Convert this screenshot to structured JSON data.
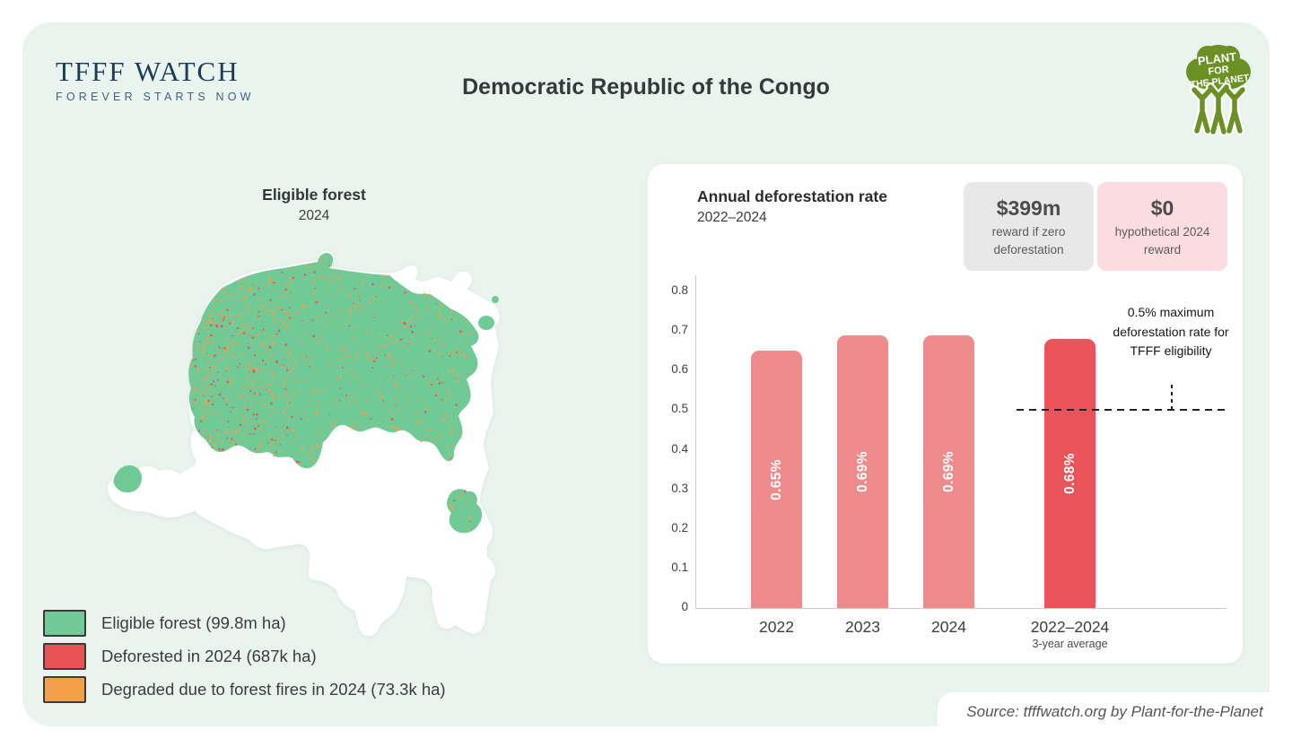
{
  "header": {
    "logo_title": "TFFF WATCH",
    "logo_tagline": "FOREVER STARTS NOW",
    "title": "Democratic Republic of the Congo",
    "brand_logo_lines": [
      "PLANT",
      "FOR",
      "THE PLANET"
    ]
  },
  "map_section": {
    "title": "Eligible forest",
    "subtitle": "2024",
    "legend": [
      {
        "label": "Eligible forest (99.8m ha)",
        "color": "#6fca96"
      },
      {
        "label": "Deforested in 2024 (687k ha)",
        "color": "#e85456"
      },
      {
        "label": "Degraded due to forest fires in 2024 (73.3k ha)",
        "color": "#f3a04a"
      }
    ]
  },
  "rewards": [
    {
      "value": "$399m",
      "label": "reward if zero deforestation",
      "bg": "#e9e8e8"
    },
    {
      "value": "$0",
      "label": "hypothetical 2024 reward",
      "bg": "#fbdce1"
    }
  ],
  "chart_data": {
    "type": "bar",
    "title": "Annual deforestation rate",
    "subtitle": "2022–2024",
    "categories": [
      "2022",
      "2023",
      "2024",
      "2022–2024"
    ],
    "category_sublabels": [
      "",
      "",
      "",
      "3-year average"
    ],
    "values": [
      0.65,
      0.69,
      0.69,
      0.68
    ],
    "value_labels": [
      "0.65%",
      "0.69%",
      "0.69%",
      "0.68%"
    ],
    "bar_colors": [
      "#f08b8b",
      "#f08b8b",
      "#f08b8b",
      "#e85459"
    ],
    "xlabel": "",
    "ylabel": "",
    "ylim": [
      0,
      0.8
    ],
    "yticks": [
      0,
      0.1,
      0.2,
      0.3,
      0.4,
      0.5,
      0.6,
      0.7,
      0.8
    ],
    "grid": false,
    "legend_position": "none",
    "threshold_line": {
      "value": 0.5,
      "annotation": "0.5% maximum deforestation rate for TFFF eligibility"
    }
  },
  "footer": {
    "source": "Source: tfffwatch.org by Plant-for-the-Planet"
  },
  "colors": {
    "panel_bg": "#e9f4ee",
    "navy": "#1c3a59",
    "brand_green": "#6b9024",
    "country_fill": "#ffffff"
  }
}
